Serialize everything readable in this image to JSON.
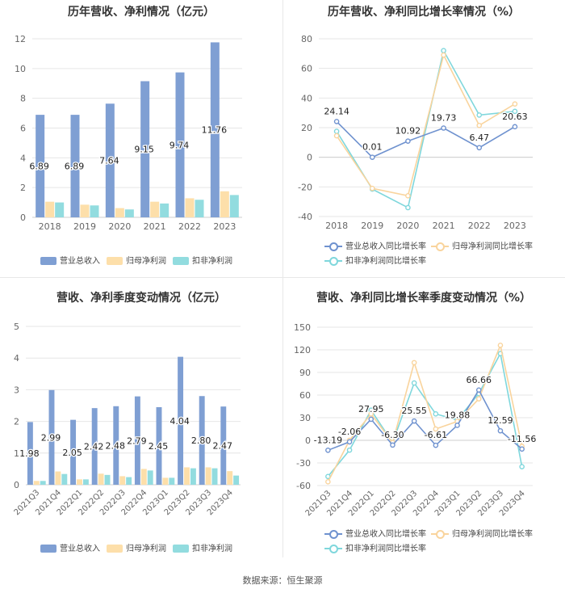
{
  "source_text": "数据来源：恒生聚源",
  "colors": {
    "revenue": "#7f9fd3",
    "parent_np": "#fddfaa",
    "deducted_np": "#92dcdf",
    "line_revenue": "#6f92cf",
    "line_parent": "#f9d49d",
    "line_deducted": "#7fd7dc",
    "grid": "#e6e6e6",
    "axis_text": "#666666"
  },
  "chart_data": [
    {
      "type": "bar",
      "title": "历年营收、净利情况（亿元）",
      "categories": [
        "2018",
        "2019",
        "2020",
        "2021",
        "2022",
        "2023"
      ],
      "ylim": [
        0,
        12
      ],
      "yticks": [
        0,
        2,
        4,
        6,
        8,
        10,
        12
      ],
      "series": [
        {
          "name": "营业总收入",
          "values": [
            6.89,
            6.89,
            7.64,
            9.15,
            9.74,
            11.76
          ],
          "labels": [
            "6.89",
            "6.89",
            "7.64",
            "9.15",
            "9.74",
            "11.76"
          ]
        },
        {
          "name": "归母净利润",
          "values": [
            1.05,
            0.85,
            0.62,
            1.05,
            1.28,
            1.75
          ]
        },
        {
          "name": "扣非净利润",
          "values": [
            1.0,
            0.8,
            0.53,
            0.93,
            1.18,
            1.5
          ]
        }
      ],
      "legend": "bottom"
    },
    {
      "type": "line",
      "title": "历年营收、净利同比增长率情况（%）",
      "categories": [
        "2018",
        "2019",
        "2020",
        "2021",
        "2022",
        "2023"
      ],
      "ylim": [
        -40,
        80
      ],
      "yticks": [
        -40,
        -20,
        0,
        20,
        40,
        60,
        80
      ],
      "series": [
        {
          "name": "营业总收入同比增长率",
          "values": [
            24.14,
            0.01,
            10.92,
            19.73,
            6.47,
            20.63
          ],
          "labels": [
            "24.14",
            "0.01",
            "10.92",
            "19.73",
            "6.47",
            "20.63"
          ]
        },
        {
          "name": "归母净利润同比增长率",
          "values": [
            14.5,
            -21,
            -26,
            69,
            21.5,
            36
          ]
        },
        {
          "name": "扣非净利润同比增长率",
          "values": [
            17.5,
            -21.5,
            -34,
            72,
            28.5,
            31
          ]
        }
      ],
      "legend": "bottom"
    },
    {
      "type": "bar",
      "title": "营收、净利季度变动情况（亿元）",
      "categories": [
        "2021Q3",
        "2021Q4",
        "2022Q1",
        "2022Q2",
        "2022Q3",
        "2022Q4",
        "2023Q1",
        "2023Q2",
        "2023Q3",
        "2023Q4"
      ],
      "ylim": [
        0,
        5
      ],
      "yticks": [
        0,
        1,
        2,
        3,
        4,
        5
      ],
      "series": [
        {
          "name": "营业总收入",
          "values": [
            1.98,
            2.99,
            2.05,
            2.42,
            2.48,
            2.79,
            2.45,
            4.04,
            2.8,
            2.47
          ],
          "labels": [
            "1.98",
            "2.99",
            "2.05",
            "2.42",
            "2.48",
            "2.79",
            "2.45",
            "4.04",
            "2.80",
            "2.47"
          ]
        },
        {
          "name": "归母净利润",
          "values": [
            0.12,
            0.42,
            0.17,
            0.35,
            0.27,
            0.5,
            0.22,
            0.55,
            0.55,
            0.43
          ]
        },
        {
          "name": "扣非净利润",
          "values": [
            0.12,
            0.34,
            0.17,
            0.31,
            0.24,
            0.45,
            0.22,
            0.52,
            0.52,
            0.29
          ]
        }
      ],
      "legend": "bottom"
    },
    {
      "type": "line",
      "title": "营收、净利同比增长率季度变动情况（%）",
      "categories": [
        "2021Q3",
        "2021Q4",
        "2022Q1",
        "2022Q2",
        "2022Q3",
        "2022Q4",
        "2023Q1",
        "2023Q2",
        "2023Q3",
        "2023Q4"
      ],
      "ylim": [
        -60,
        150
      ],
      "yticks": [
        -60,
        -30,
        0,
        30,
        60,
        90,
        120,
        150
      ],
      "series": [
        {
          "name": "营业总收入同比增长率",
          "values": [
            -13.19,
            -2.06,
            27.95,
            -6.3,
            25.55,
            -6.61,
            19.88,
            66.66,
            12.59,
            -11.56
          ],
          "labels": [
            "-13.19",
            "-2.06",
            "27.95",
            "-6.30",
            "25.55",
            "-6.61",
            "19.88",
            "66.66",
            "12.59",
            "-11.56"
          ]
        },
        {
          "name": "归母净利润同比增长率",
          "values": [
            -55,
            0,
            35,
            -3,
            103,
            15,
            25,
            55,
            126,
            -8
          ]
        },
        {
          "name": "扣非净利润同比增长率",
          "values": [
            -48,
            -13,
            40,
            -3,
            76,
            35,
            27,
            62,
            115,
            -35
          ]
        }
      ],
      "legend": "bottom"
    }
  ]
}
